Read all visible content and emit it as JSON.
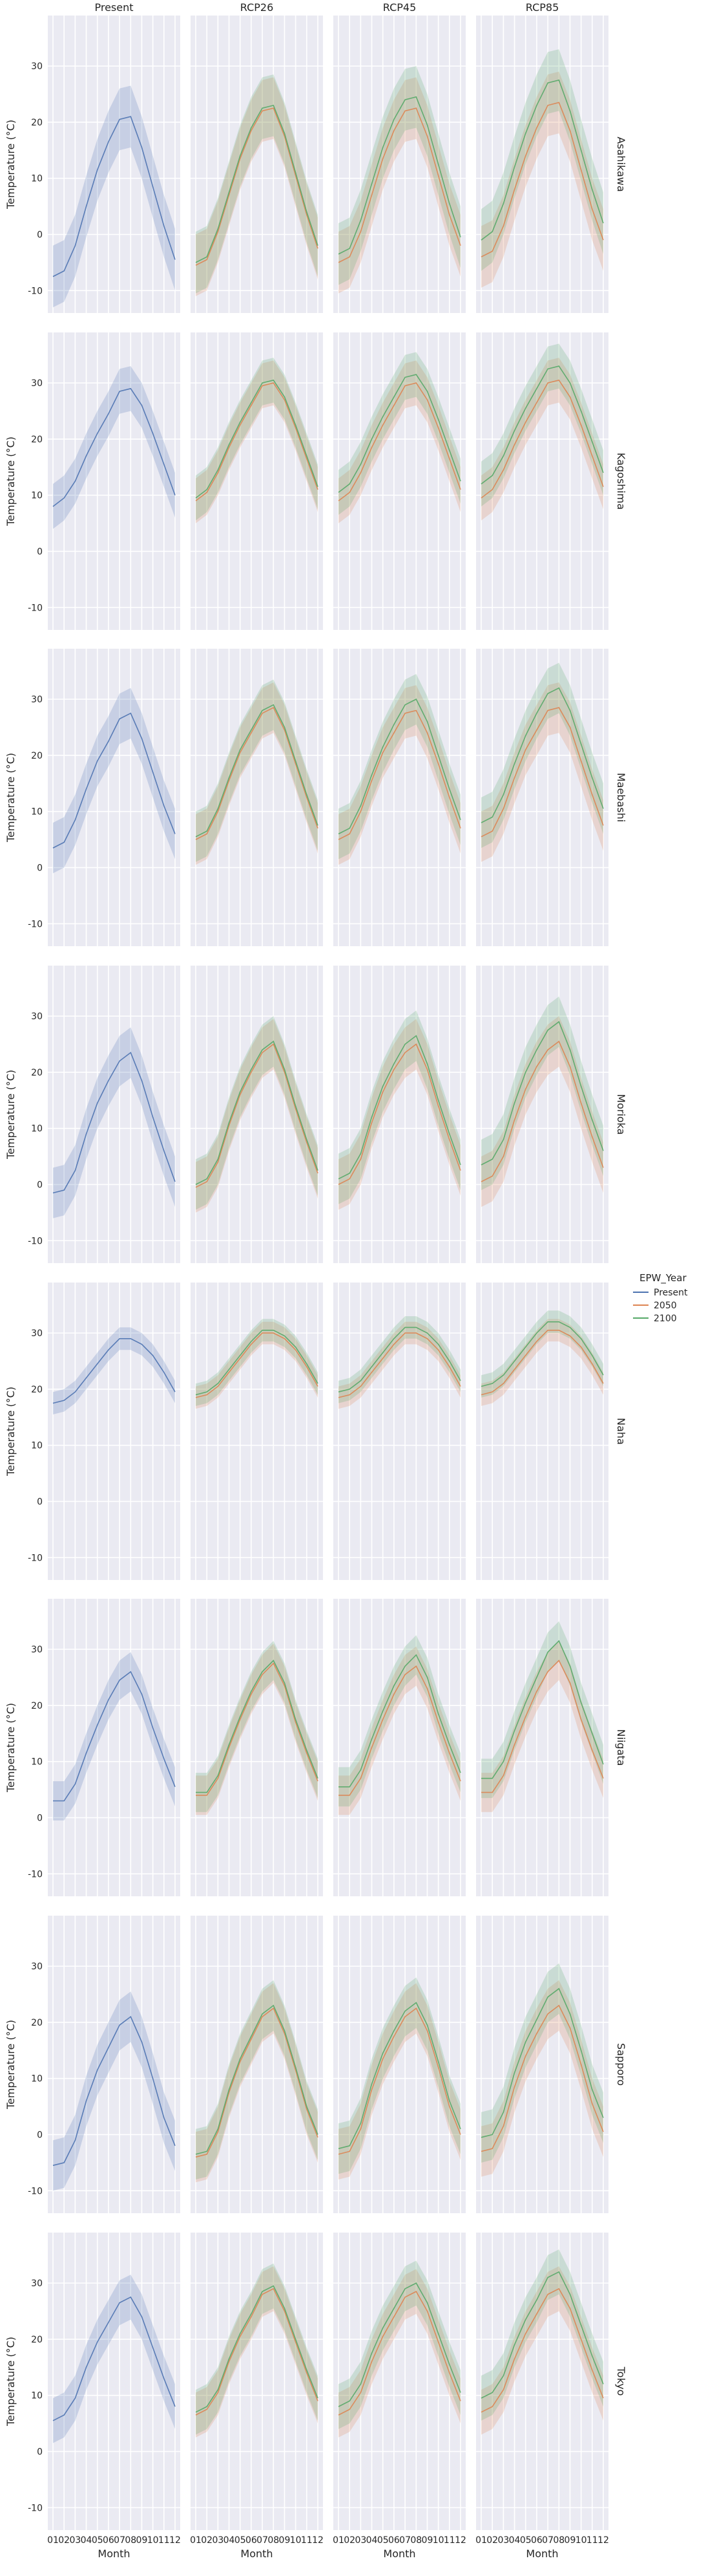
{
  "chart_data": {
    "type": "line",
    "facet_columns": [
      "Present",
      "RCP26",
      "RCP45",
      "RCP85"
    ],
    "facet_rows": [
      "Asahikawa",
      "Kagoshima",
      "Maebashi",
      "Morioka",
      "Naha",
      "Niigata",
      "Sapporo",
      "Tokyo"
    ],
    "x": [
      "01",
      "02",
      "03",
      "04",
      "05",
      "06",
      "07",
      "08",
      "09",
      "10",
      "11",
      "12"
    ],
    "x_tick_labels": [
      "01",
      "02",
      "03",
      "04",
      "05",
      "06",
      "07",
      "08",
      "09",
      "10",
      "11",
      "12"
    ],
    "xlabel": "Month",
    "ylabel": "Temperature (°C)",
    "ylim": [
      -14,
      39
    ],
    "yticks": [
      -10,
      0,
      10,
      20,
      30
    ],
    "grid": true,
    "legend": {
      "title": "EPW_Year",
      "placement": "right",
      "entries": [
        "Present",
        "2050",
        "2100"
      ]
    },
    "colors": {
      "Present": "#4c72b0",
      "2050": "#dd8452",
      "2100": "#55a868"
    },
    "series": {
      "Asahikawa": {
        "Present": {
          "mean": [
            -7.5,
            -6.5,
            -2.0,
            5.0,
            11.5,
            16.5,
            20.5,
            21.0,
            15.5,
            8.5,
            1.5,
            -4.5
          ],
          "spread": 5.5
        },
        "2050": {
          "RCP26": [
            -5.5,
            -4.5,
            0.5,
            7.0,
            13.5,
            18.5,
            22.0,
            22.5,
            17.5,
            10.5,
            3.5,
            -2.5
          ],
          "RCP45": [
            -5.0,
            -4.0,
            0.5,
            7.0,
            13.5,
            18.5,
            22.0,
            22.5,
            17.5,
            10.5,
            3.5,
            -2.0
          ],
          "RCP85": [
            -4.0,
            -3.0,
            1.5,
            8.0,
            14.0,
            19.0,
            23.0,
            23.5,
            18.5,
            11.5,
            4.5,
            -1.0
          ]
        },
        "2100": {
          "RCP26": [
            -5.0,
            -4.0,
            1.0,
            7.5,
            14.0,
            19.0,
            22.5,
            23.0,
            18.0,
            11.0,
            4.0,
            -2.0
          ],
          "RCP45": [
            -3.5,
            -2.5,
            2.5,
            9.0,
            15.5,
            20.5,
            24.0,
            24.5,
            19.5,
            12.5,
            5.5,
            -0.5
          ],
          "RCP85": [
            -1.0,
            0.5,
            5.5,
            12.0,
            18.0,
            23.0,
            27.0,
            27.5,
            22.0,
            15.0,
            8.0,
            2.0
          ]
        }
      },
      "Kagoshima": {
        "Present": {
          "mean": [
            8.0,
            9.5,
            12.5,
            17.0,
            21.0,
            24.5,
            28.5,
            29.0,
            26.0,
            21.0,
            15.5,
            10.0
          ],
          "spread": 4.0
        },
        "2050": {
          "RCP26": [
            9.0,
            10.5,
            14.0,
            18.5,
            22.5,
            26.0,
            29.5,
            30.0,
            27.0,
            22.0,
            16.5,
            11.0
          ],
          "RCP45": [
            9.0,
            10.5,
            14.0,
            18.5,
            22.5,
            26.0,
            29.5,
            30.0,
            27.0,
            22.0,
            16.5,
            11.0
          ],
          "RCP85": [
            9.5,
            11.0,
            14.5,
            19.0,
            23.0,
            26.5,
            30.0,
            30.5,
            27.5,
            22.5,
            17.0,
            11.5
          ]
        },
        "2100": {
          "RCP26": [
            9.5,
            11.0,
            14.5,
            19.0,
            23.0,
            26.5,
            30.0,
            30.5,
            27.5,
            22.5,
            17.0,
            11.5
          ],
          "RCP45": [
            10.5,
            12.0,
            15.5,
            20.0,
            24.0,
            27.5,
            31.0,
            31.5,
            28.5,
            23.5,
            18.0,
            12.5
          ],
          "RCP85": [
            12.0,
            13.5,
            17.0,
            21.5,
            25.5,
            29.0,
            32.5,
            33.0,
            30.0,
            25.0,
            19.5,
            14.0
          ]
        }
      },
      "Maebashi": {
        "Present": {
          "mean": [
            3.5,
            4.5,
            8.5,
            14.0,
            19.0,
            22.5,
            26.5,
            27.5,
            23.0,
            17.0,
            11.0,
            6.0
          ],
          "spread": 4.5
        },
        "2050": {
          "RCP26": [
            5.0,
            6.0,
            10.0,
            15.5,
            20.5,
            24.0,
            27.5,
            28.5,
            24.5,
            18.5,
            12.5,
            7.0
          ],
          "RCP45": [
            5.0,
            6.0,
            10.0,
            15.5,
            20.5,
            24.0,
            27.5,
            28.0,
            24.0,
            18.5,
            12.5,
            7.0
          ],
          "RCP85": [
            5.5,
            6.5,
            10.5,
            16.0,
            21.0,
            24.5,
            28.0,
            28.5,
            25.0,
            19.0,
            13.0,
            7.5
          ]
        },
        "2100": {
          "RCP26": [
            5.5,
            6.5,
            10.5,
            16.0,
            21.0,
            24.5,
            28.0,
            29.0,
            25.0,
            19.0,
            13.0,
            7.5
          ],
          "RCP45": [
            6.0,
            7.0,
            11.0,
            16.5,
            21.5,
            25.5,
            29.0,
            30.0,
            26.0,
            20.0,
            14.0,
            8.5
          ],
          "RCP85": [
            8.0,
            9.0,
            13.0,
            18.5,
            23.5,
            27.5,
            31.0,
            32.0,
            28.0,
            22.0,
            16.0,
            10.5
          ]
        }
      },
      "Morioka": {
        "Present": {
          "mean": [
            -1.5,
            -1.0,
            2.5,
            9.0,
            14.5,
            18.5,
            22.0,
            23.5,
            18.5,
            12.0,
            6.0,
            0.5
          ],
          "spread": 4.5
        },
        "2050": {
          "RCP26": [
            -0.5,
            0.5,
            4.0,
            10.5,
            16.0,
            20.0,
            23.5,
            25.0,
            20.0,
            13.5,
            7.5,
            2.0
          ],
          "RCP45": [
            0.0,
            1.0,
            4.5,
            11.0,
            16.5,
            20.5,
            23.5,
            25.0,
            20.5,
            14.0,
            8.0,
            2.5
          ],
          "RCP85": [
            0.5,
            1.5,
            5.0,
            11.5,
            17.0,
            21.0,
            24.0,
            25.5,
            21.0,
            14.5,
            8.5,
            3.0
          ]
        },
        "2100": {
          "RCP26": [
            0.0,
            1.0,
            4.5,
            11.0,
            16.5,
            20.5,
            24.0,
            25.5,
            20.5,
            14.0,
            8.0,
            2.5
          ],
          "RCP45": [
            1.0,
            2.0,
            5.5,
            12.0,
            17.5,
            21.5,
            25.0,
            26.5,
            21.5,
            15.0,
            9.0,
            3.5
          ],
          "RCP85": [
            3.5,
            4.5,
            8.0,
            14.5,
            20.0,
            24.0,
            27.5,
            29.0,
            24.0,
            17.5,
            11.5,
            6.0
          ]
        }
      },
      "Naha": {
        "Present": {
          "mean": [
            17.5,
            18.0,
            19.5,
            22.0,
            24.5,
            27.0,
            29.0,
            29.0,
            28.0,
            26.0,
            23.0,
            19.5
          ],
          "spread": 2.0
        },
        "2050": {
          "RCP26": [
            18.5,
            19.0,
            20.5,
            23.0,
            25.5,
            28.0,
            30.0,
            30.0,
            29.0,
            27.0,
            24.0,
            20.5
          ],
          "RCP45": [
            18.5,
            19.0,
            20.5,
            23.0,
            25.5,
            28.0,
            30.0,
            30.0,
            29.0,
            27.0,
            24.0,
            20.5
          ],
          "RCP85": [
            19.0,
            19.5,
            21.0,
            23.5,
            26.0,
            28.5,
            30.5,
            30.5,
            29.5,
            27.5,
            24.5,
            21.0
          ]
        },
        "2100": {
          "RCP26": [
            19.0,
            19.5,
            21.0,
            23.5,
            26.0,
            28.5,
            30.5,
            30.5,
            29.5,
            27.5,
            24.5,
            21.0
          ],
          "RCP45": [
            19.5,
            20.0,
            21.5,
            24.0,
            26.5,
            29.0,
            31.0,
            31.0,
            30.0,
            28.0,
            25.0,
            21.5
          ],
          "RCP85": [
            20.5,
            21.0,
            22.5,
            25.0,
            27.5,
            30.0,
            32.0,
            32.0,
            31.0,
            29.0,
            26.0,
            22.5
          ]
        }
      },
      "Niigata": {
        "Present": {
          "mean": [
            3.0,
            3.0,
            6.0,
            11.5,
            16.5,
            21.0,
            24.5,
            26.0,
            22.0,
            16.0,
            10.5,
            5.5
          ],
          "spread": 3.5
        },
        "2050": {
          "RCP26": [
            4.0,
            4.0,
            7.0,
            12.5,
            17.5,
            22.0,
            25.5,
            27.5,
            23.5,
            17.0,
            11.5,
            6.5
          ],
          "RCP45": [
            4.0,
            4.0,
            7.0,
            12.5,
            17.5,
            22.0,
            25.5,
            27.0,
            23.0,
            17.0,
            11.5,
            6.5
          ],
          "RCP85": [
            4.5,
            4.5,
            7.5,
            13.0,
            18.0,
            22.5,
            26.0,
            28.0,
            24.0,
            17.5,
            12.0,
            7.0
          ]
        },
        "2100": {
          "RCP26": [
            4.5,
            4.5,
            7.5,
            13.0,
            18.0,
            22.5,
            26.0,
            28.0,
            24.0,
            17.5,
            12.0,
            7.0
          ],
          "RCP45": [
            5.5,
            5.5,
            8.5,
            14.0,
            19.0,
            23.5,
            27.0,
            29.0,
            25.0,
            18.5,
            13.0,
            8.0
          ],
          "RCP85": [
            7.0,
            7.0,
            10.0,
            15.5,
            20.5,
            25.0,
            29.5,
            31.5,
            27.0,
            20.5,
            15.0,
            9.5
          ]
        }
      },
      "Sapporo": {
        "Present": {
          "mean": [
            -5.5,
            -5.0,
            -1.0,
            6.0,
            11.5,
            15.5,
            19.5,
            21.0,
            16.5,
            10.0,
            3.0,
            -2.0
          ],
          "spread": 4.5
        },
        "2050": {
          "RCP26": [
            -4.0,
            -3.5,
            0.5,
            7.5,
            13.0,
            17.0,
            21.0,
            22.5,
            18.0,
            11.5,
            4.5,
            -0.5
          ],
          "RCP45": [
            -3.5,
            -3.0,
            1.0,
            8.0,
            13.5,
            17.5,
            21.0,
            22.5,
            18.5,
            12.0,
            5.0,
            0.0
          ],
          "RCP85": [
            -3.0,
            -2.5,
            1.5,
            8.5,
            14.0,
            18.0,
            21.5,
            23.0,
            19.0,
            12.5,
            5.5,
            0.5
          ]
        },
        "2100": {
          "RCP26": [
            -3.5,
            -3.0,
            1.0,
            8.0,
            13.5,
            17.5,
            21.5,
            23.0,
            18.5,
            12.0,
            5.0,
            0.0
          ],
          "RCP45": [
            -2.5,
            -2.0,
            2.0,
            9.0,
            14.5,
            18.5,
            22.0,
            23.5,
            19.5,
            13.0,
            6.0,
            1.0
          ],
          "RCP85": [
            -0.5,
            0.0,
            4.0,
            11.0,
            16.5,
            20.5,
            24.5,
            26.0,
            21.5,
            15.0,
            8.0,
            3.0
          ]
        }
      },
      "Tokyo": {
        "Present": {
          "mean": [
            5.5,
            6.5,
            9.5,
            15.0,
            19.5,
            23.0,
            26.5,
            27.5,
            24.0,
            18.5,
            13.0,
            8.0
          ],
          "spread": 4.0
        },
        "2050": {
          "RCP26": [
            6.5,
            7.5,
            10.5,
            16.0,
            20.5,
            24.0,
            28.0,
            29.0,
            25.0,
            19.5,
            14.0,
            9.0
          ],
          "RCP45": [
            6.5,
            7.5,
            10.5,
            16.0,
            20.5,
            24.0,
            27.5,
            28.5,
            25.0,
            19.5,
            14.0,
            9.0
          ],
          "RCP85": [
            7.0,
            8.0,
            11.0,
            16.5,
            21.0,
            24.5,
            28.0,
            29.0,
            25.5,
            20.0,
            14.5,
            9.5
          ]
        },
        "2100": {
          "RCP26": [
            7.0,
            8.0,
            11.0,
            16.5,
            21.0,
            24.5,
            28.5,
            29.5,
            25.5,
            20.0,
            14.5,
            9.5
          ],
          "RCP45": [
            8.0,
            9.0,
            12.0,
            17.5,
            22.0,
            25.5,
            29.0,
            30.0,
            26.5,
            21.0,
            15.5,
            10.5
          ],
          "RCP85": [
            9.5,
            10.5,
            13.5,
            19.0,
            23.5,
            27.0,
            31.0,
            32.0,
            28.0,
            22.5,
            17.0,
            12.0
          ]
        }
      }
    }
  }
}
